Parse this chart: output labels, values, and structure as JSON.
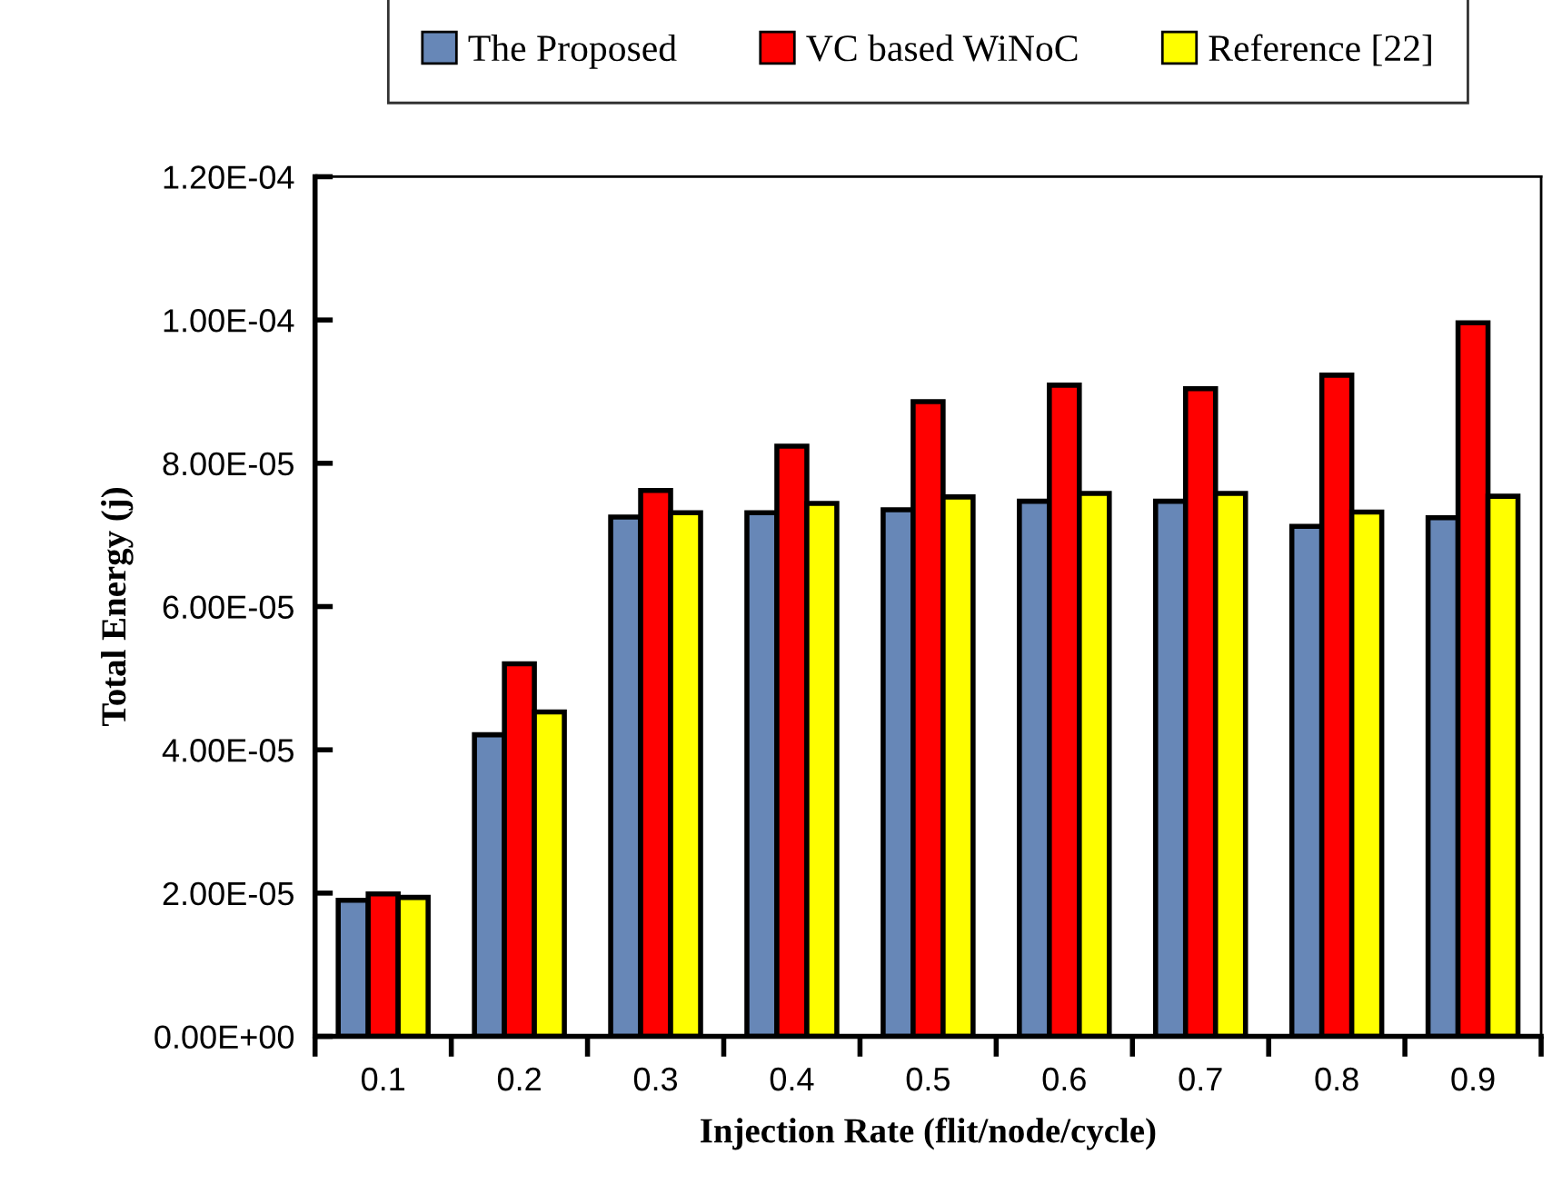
{
  "chart_data": {
    "type": "bar",
    "xlabel": "Injection Rate (flit/node/cycle)",
    "ylabel": "Total Energy (j)",
    "categories": [
      "0.1",
      "0.2",
      "0.3",
      "0.4",
      "0.5",
      "0.6",
      "0.7",
      "0.8",
      "0.9"
    ],
    "series": [
      {
        "name": "The Proposed",
        "color": "#6787b7",
        "values": [
          1.9e-05,
          4.21e-05,
          7.25e-05,
          7.31e-05,
          7.35e-05,
          7.47e-05,
          7.47e-05,
          7.12e-05,
          7.24e-05
        ]
      },
      {
        "name": "VC based WiNoC",
        "color": "#ff0000",
        "values": [
          1.99e-05,
          5.2e-05,
          7.62e-05,
          8.24e-05,
          8.86e-05,
          9.09e-05,
          9.04e-05,
          9.23e-05,
          9.96e-05
        ]
      },
      {
        "name": "Reference [22]",
        "color": "#ffff00",
        "values": [
          1.94e-05,
          4.53e-05,
          7.31e-05,
          7.44e-05,
          7.53e-05,
          7.58e-05,
          7.58e-05,
          7.32e-05,
          7.54e-05
        ]
      }
    ],
    "ylim": [
      0,
      0.00012
    ],
    "yticks": [
      {
        "value": 0,
        "label": "0.00E+00"
      },
      {
        "value": 2e-05,
        "label": "2.00E-05"
      },
      {
        "value": 4e-05,
        "label": "4.00E-05"
      },
      {
        "value": 6e-05,
        "label": "6.00E-05"
      },
      {
        "value": 8e-05,
        "label": "8.00E-05"
      },
      {
        "value": 0.0001,
        "label": "1.00E-04"
      },
      {
        "value": 0.00012,
        "label": "1.20E-04"
      }
    ],
    "grid": false,
    "legend": "top"
  }
}
